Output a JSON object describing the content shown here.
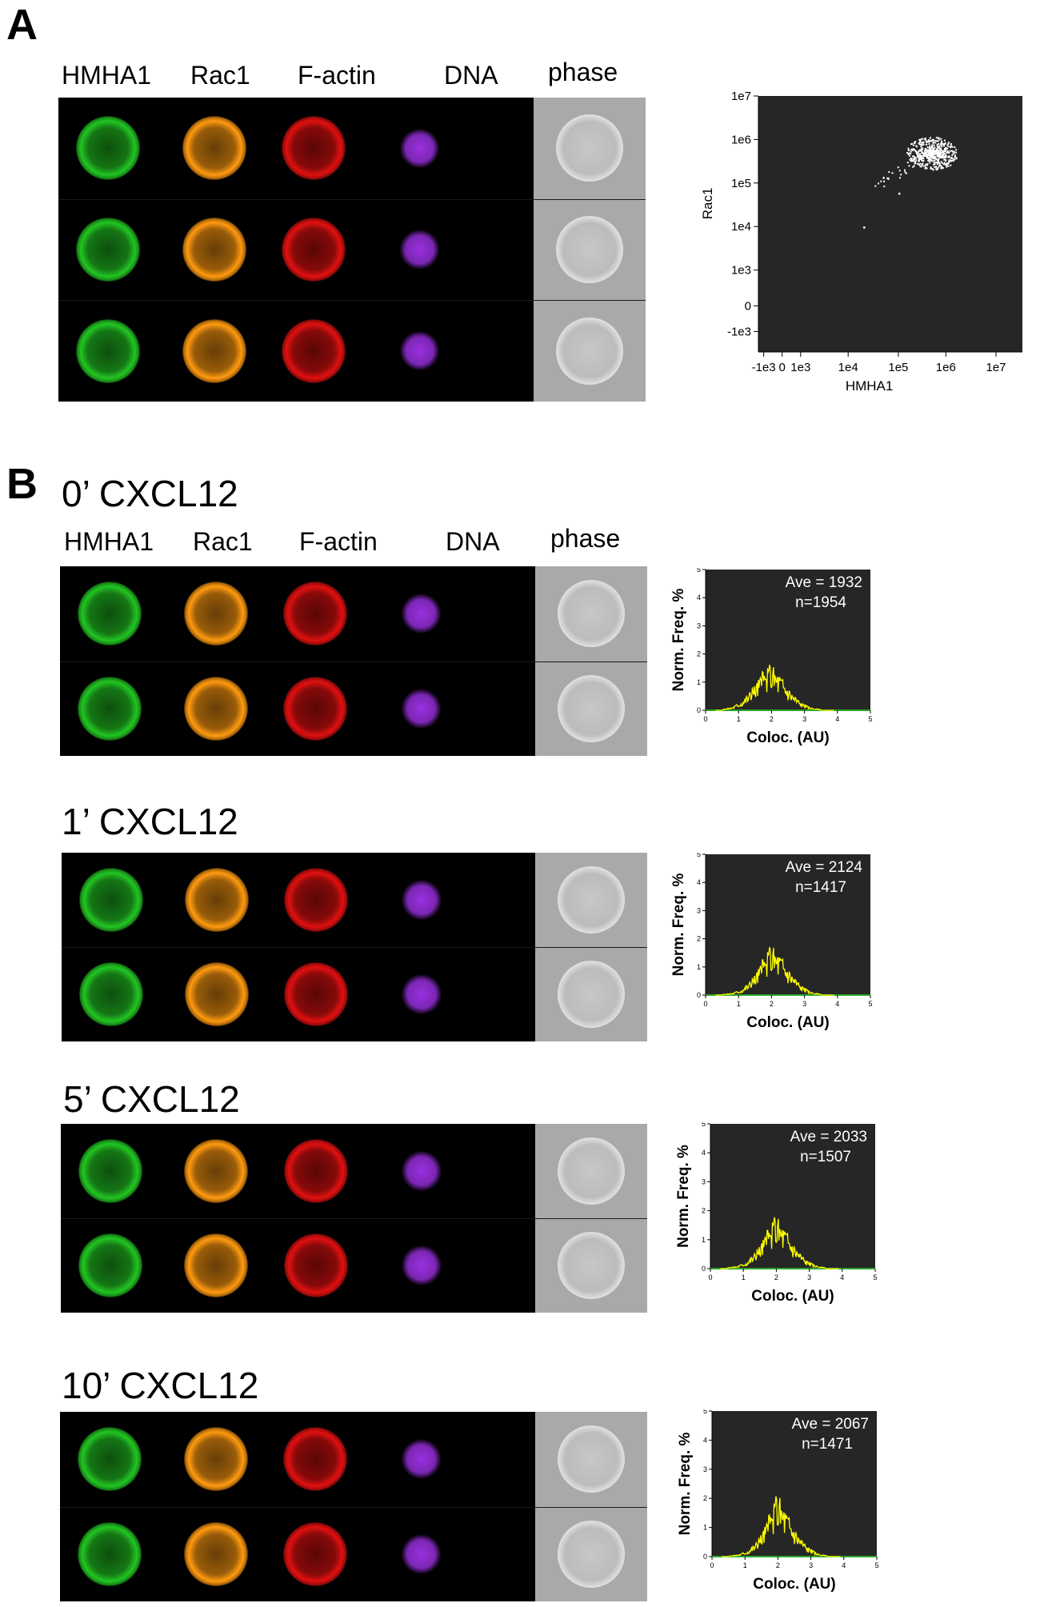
{
  "panel_a": {
    "letter": "A",
    "columns": [
      "HMHA1",
      "Rac1",
      "F-actin",
      "DNA",
      "phase"
    ]
  },
  "panel_b": {
    "letter": "B",
    "columns": [
      "HMHA1",
      "Rac1",
      "F-actin",
      "DNA",
      "phase"
    ],
    "conditions": [
      {
        "label": "0’ CXCL12"
      },
      {
        "label": "1’ CXCL12"
      },
      {
        "label": "5’ CXCL12"
      },
      {
        "label": "10’ CXCL12"
      }
    ]
  },
  "colors": {
    "hmha1": "#22c522",
    "rac1": "#ff9a10",
    "factin": "#e01010",
    "dna": "#9a30e0",
    "plot_bg": "#262626",
    "hist_line": "#ffff00",
    "baseline": "#2fa82f"
  },
  "chart_data": [
    {
      "type": "scatter",
      "xlabel": "HMHA1",
      "ylabel": "Rac1",
      "x_scale": "log (biexponential)",
      "y_scale": "log (biexponential)",
      "x_ticks": [
        "-1e3",
        "0",
        "1e3",
        "1e4",
        "1e5",
        "1e6",
        "1e7"
      ],
      "y_ticks": [
        "1e7",
        "1e6",
        "1e5",
        "1e4",
        "1e3",
        "0",
        "-1e3"
      ],
      "cluster_center": {
        "x": 500000,
        "y": 500000
      },
      "outliers": [
        {
          "x": 100000,
          "y": 60000
        },
        {
          "x": 20000,
          "y": 10000
        }
      ]
    },
    {
      "type": "area",
      "ave_text": "Ave = 1932",
      "n_text": "n=1954",
      "xlabel": "Coloc. (AU)",
      "ylabel": "Norm. Freq. %",
      "xlim": [
        0,
        5
      ],
      "ylim": [
        0,
        5
      ],
      "x_ticks": [
        "0",
        "1",
        "2",
        "3",
        "4",
        "5"
      ],
      "y_ticks": [
        "0",
        "1",
        "2",
        "3",
        "4",
        "5"
      ],
      "x": [
        0.5,
        0.8,
        1.1,
        1.4,
        1.7,
        2.0,
        2.3,
        2.6,
        2.9,
        3.2,
        3.5
      ],
      "values": [
        0.02,
        0.08,
        0.25,
        0.55,
        0.95,
        1.2,
        0.9,
        0.5,
        0.2,
        0.06,
        0.02
      ]
    },
    {
      "type": "area",
      "ave_text": "Ave = 2124",
      "n_text": "n=1417",
      "xlabel": "Coloc. (AU)",
      "ylabel": "Norm. Freq. %",
      "xlim": [
        0,
        5
      ],
      "ylim": [
        0,
        5
      ],
      "x_ticks": [
        "0",
        "1",
        "2",
        "3",
        "4",
        "5"
      ],
      "y_ticks": [
        "0",
        "1",
        "2",
        "3",
        "4",
        "5"
      ],
      "x": [
        0.5,
        0.8,
        1.1,
        1.4,
        1.7,
        2.0,
        2.3,
        2.6,
        2.9,
        3.2,
        3.5
      ],
      "values": [
        0.01,
        0.05,
        0.15,
        0.4,
        0.85,
        1.3,
        1.05,
        0.6,
        0.25,
        0.07,
        0.02
      ]
    },
    {
      "type": "area",
      "ave_text": "Ave = 2033",
      "n_text": "n=1507",
      "xlabel": "Coloc. (AU)",
      "ylabel": "Norm. Freq. %",
      "xlim": [
        0,
        5
      ],
      "ylim": [
        0,
        5
      ],
      "x_ticks": [
        "0",
        "1",
        "2",
        "3",
        "4",
        "5"
      ],
      "y_ticks": [
        "0",
        "1",
        "2",
        "3",
        "4",
        "5"
      ],
      "x": [
        0.5,
        0.8,
        1.1,
        1.4,
        1.7,
        2.0,
        2.3,
        2.6,
        2.9,
        3.2,
        3.5
      ],
      "values": [
        0.02,
        0.06,
        0.18,
        0.45,
        0.9,
        1.35,
        1.0,
        0.55,
        0.22,
        0.07,
        0.02
      ]
    },
    {
      "type": "area",
      "ave_text": "Ave = 2067",
      "n_text": "n=1471",
      "xlabel": "Coloc. (AU)",
      "ylabel": "Norm. Freq. %",
      "xlim": [
        0,
        5
      ],
      "ylim": [
        0,
        5
      ],
      "x_ticks": [
        "0",
        "1",
        "2",
        "3",
        "4",
        "5"
      ],
      "y_ticks": [
        "0",
        "1",
        "2",
        "3",
        "4",
        "5"
      ],
      "x": [
        0.5,
        0.8,
        1.1,
        1.4,
        1.7,
        2.0,
        2.3,
        2.6,
        2.9,
        3.2,
        3.5
      ],
      "values": [
        0.01,
        0.05,
        0.16,
        0.42,
        0.95,
        1.6,
        1.1,
        0.6,
        0.25,
        0.07,
        0.02
      ]
    }
  ]
}
